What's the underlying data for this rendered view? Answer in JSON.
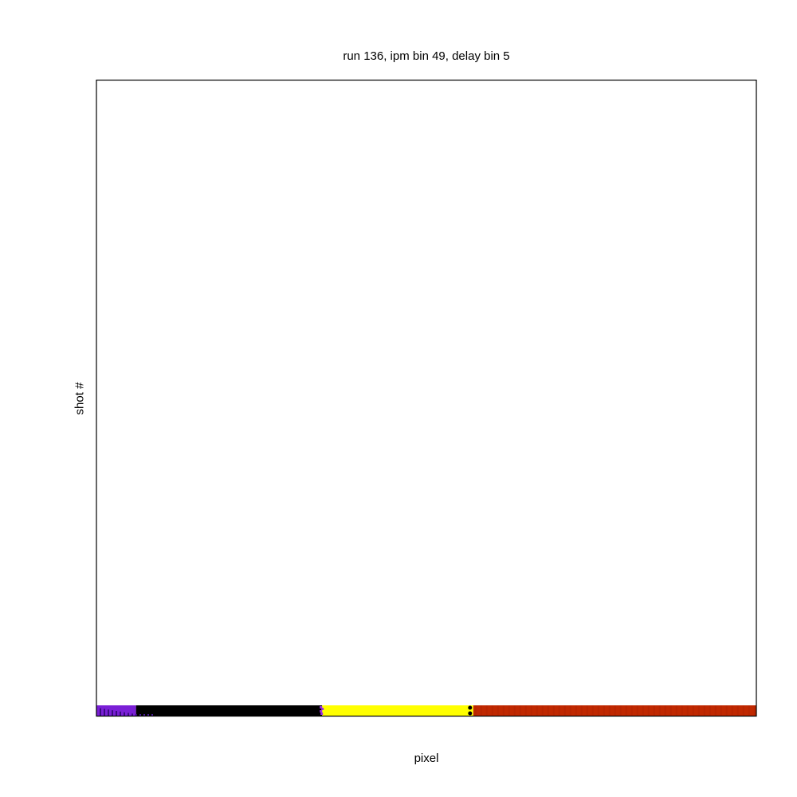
{
  "chart_data": {
    "type": "heatmap",
    "title": "run 136, ipm bin 49, delay bin 5",
    "xlabel": "pixel",
    "ylabel": "shot #",
    "legend": "none",
    "grid": false,
    "colors": {
      "purple": "#7a1fd6",
      "black": "#000000",
      "yellow": "#ffff00",
      "red": "#c02800"
    },
    "segments": [
      {
        "name": "purple",
        "start_fraction": 0.0,
        "end_fraction": 0.06
      },
      {
        "name": "black",
        "start_fraction": 0.06,
        "end_fraction": 0.342
      },
      {
        "name": "yellow",
        "start_fraction": 0.342,
        "end_fraction": 0.571
      },
      {
        "name": "red",
        "start_fraction": 0.571,
        "end_fraction": 1.0
      }
    ]
  }
}
